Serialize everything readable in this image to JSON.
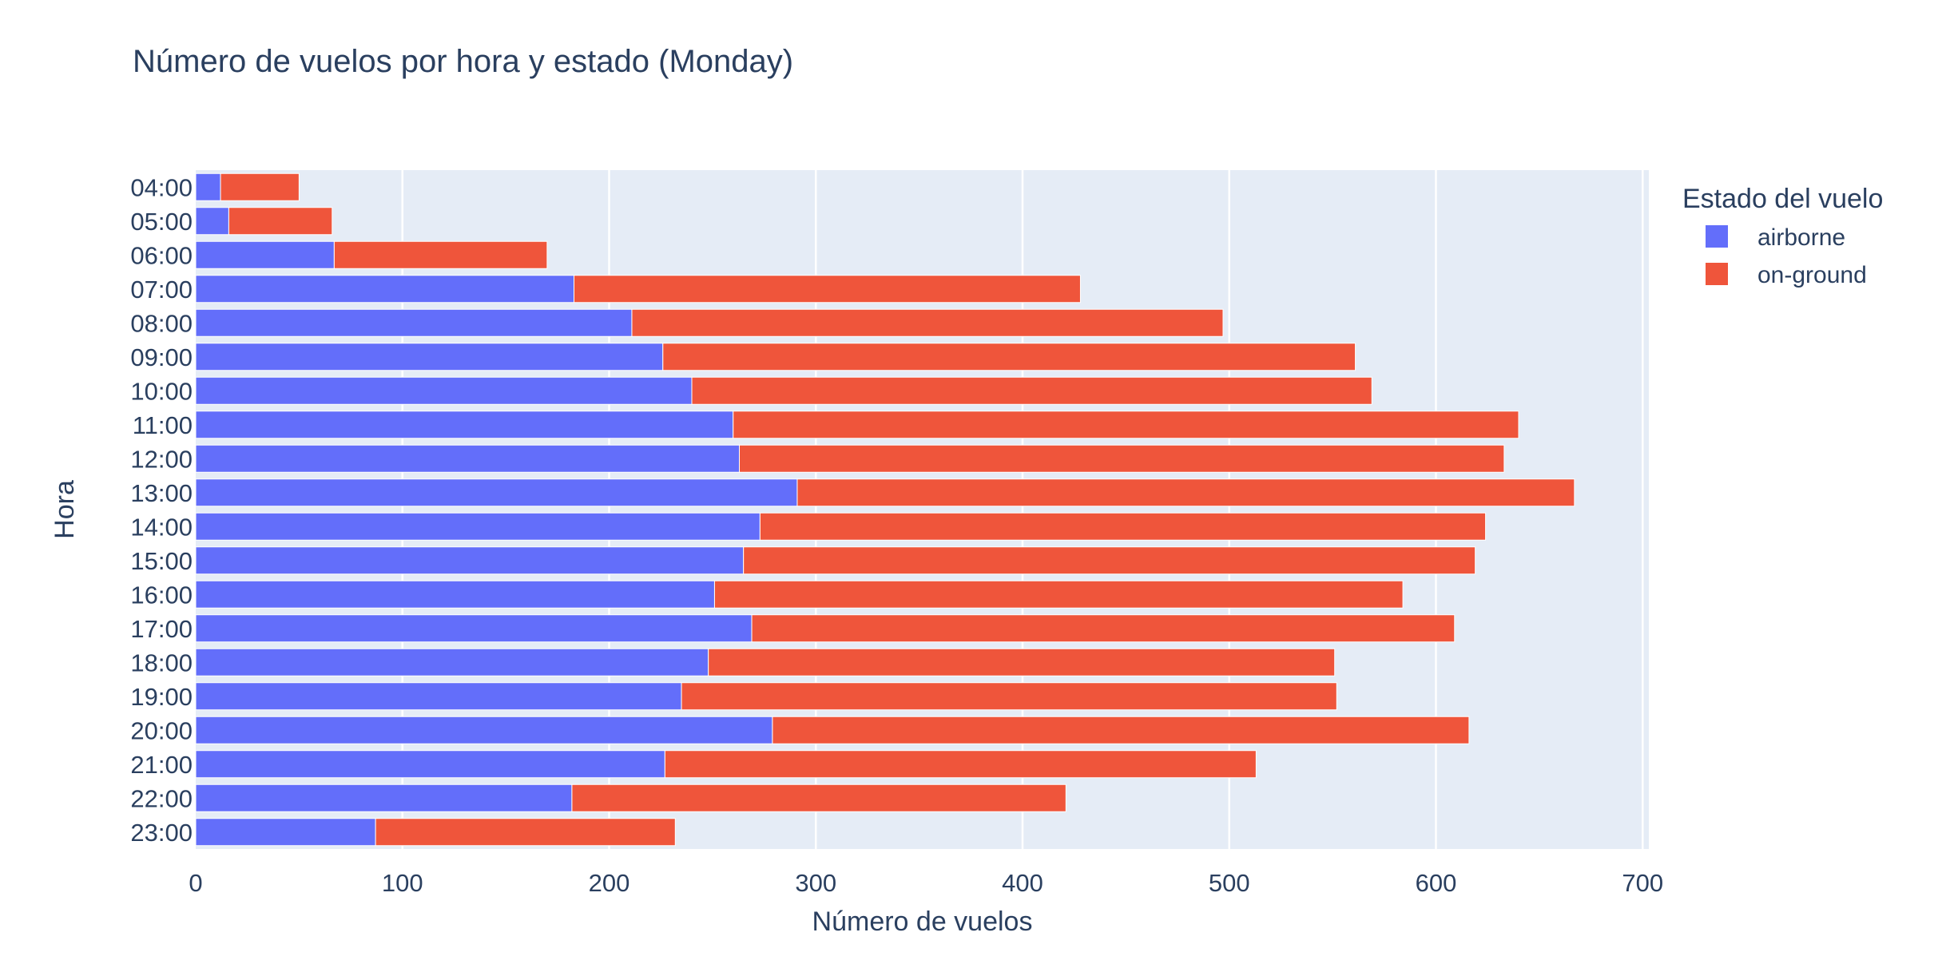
{
  "chart_data": {
    "type": "bar",
    "orientation": "horizontal",
    "barmode": "stack",
    "title": "Número de vuelos por hora y estado (Monday)",
    "xlabel": "Número de vuelos",
    "ylabel": "Hora",
    "xlim": [
      0,
      703
    ],
    "xticks": [
      0,
      100,
      200,
      300,
      400,
      500,
      600,
      700
    ],
    "grid": true,
    "legend": {
      "title": "Estado del vuelo",
      "placement": "top-right"
    },
    "categories": [
      "04:00",
      "05:00",
      "06:00",
      "07:00",
      "08:00",
      "09:00",
      "10:00",
      "11:00",
      "12:00",
      "13:00",
      "14:00",
      "15:00",
      "16:00",
      "17:00",
      "18:00",
      "19:00",
      "20:00",
      "21:00",
      "22:00",
      "23:00"
    ],
    "series": [
      {
        "name": "airborne",
        "color": "#636efa",
        "values": [
          12,
          16,
          67,
          183,
          211,
          226,
          240,
          260,
          263,
          291,
          273,
          265,
          251,
          269,
          248,
          235,
          279,
          227,
          182,
          87
        ]
      },
      {
        "name": "on-ground",
        "color": "#ef553b",
        "values": [
          38,
          50,
          103,
          245,
          286,
          335,
          329,
          380,
          370,
          376,
          351,
          354,
          333,
          340,
          303,
          317,
          337,
          286,
          239,
          145
        ]
      }
    ]
  }
}
